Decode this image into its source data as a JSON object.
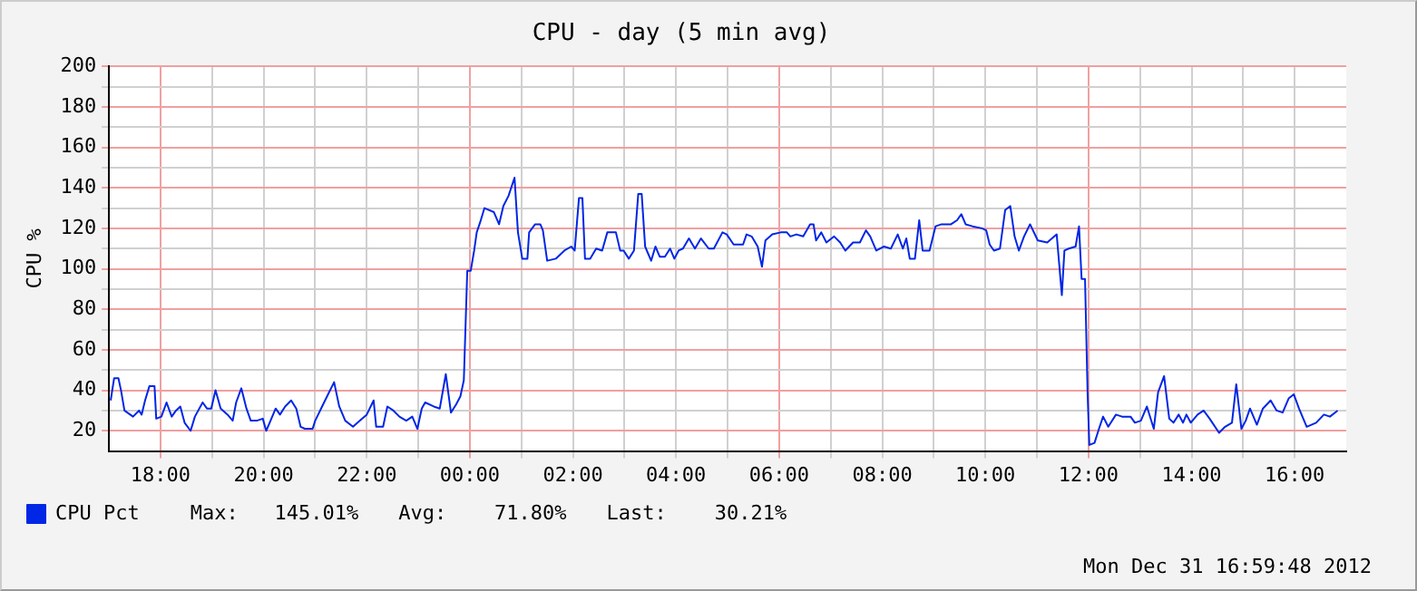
{
  "chart_data": {
    "type": "line",
    "title": "CPU - day (5 min avg)",
    "ylabel": "CPU %",
    "x": [
      "2012-12-30T17:02",
      "2012-12-30T17:06",
      "2012-12-30T17:11",
      "2012-12-30T17:14",
      "2012-12-30T17:18",
      "2012-12-30T17:28",
      "2012-12-30T17:35",
      "2012-12-30T17:38",
      "2012-12-30T17:42",
      "2012-12-30T17:47",
      "2012-12-30T17:53",
      "2012-12-30T17:55",
      "2012-12-30T18:01",
      "2012-12-30T18:07",
      "2012-12-30T18:13",
      "2012-12-30T18:18",
      "2012-12-30T18:23",
      "2012-12-30T18:28",
      "2012-12-30T18:35",
      "2012-12-30T18:40",
      "2012-12-30T18:49",
      "2012-12-30T18:54",
      "2012-12-30T18:59",
      "2012-12-30T19:04",
      "2012-12-30T19:10",
      "2012-12-30T19:18",
      "2012-12-30T19:24",
      "2012-12-30T19:28",
      "2012-12-30T19:34",
      "2012-12-30T19:40",
      "2012-12-30T19:45",
      "2012-12-30T19:52",
      "2012-12-30T19:59",
      "2012-12-30T20:03",
      "2012-12-30T20:08",
      "2012-12-30T20:14",
      "2012-12-30T20:19",
      "2012-12-30T20:25",
      "2012-12-30T20:32",
      "2012-12-30T20:38",
      "2012-12-30T20:43",
      "2012-12-30T20:48",
      "2012-12-30T20:57",
      "2012-12-30T21:00",
      "2012-12-30T21:08",
      "2012-12-30T21:15",
      "2012-12-30T21:22",
      "2012-12-30T21:28",
      "2012-12-30T21:35",
      "2012-12-30T21:44",
      "2012-12-30T21:52",
      "2012-12-30T22:00",
      "2012-12-30T22:08",
      "2012-12-30T22:11",
      "2012-12-30T22:19",
      "2012-12-30T22:24",
      "2012-12-30T22:31",
      "2012-12-30T22:38",
      "2012-12-30T22:46",
      "2012-12-30T22:53",
      "2012-12-30T22:59",
      "2012-12-30T23:04",
      "2012-12-30T23:08",
      "2012-12-30T23:18",
      "2012-12-30T23:25",
      "2012-12-30T23:32",
      "2012-12-30T23:38",
      "2012-12-30T23:44",
      "2012-12-30T23:49",
      "2012-12-30T23:53",
      "2012-12-30T23:57",
      "2012-12-31T00:01",
      "2012-12-31T00:05",
      "2012-12-31T00:08",
      "2012-12-31T00:12",
      "2012-12-31T00:17",
      "2012-12-31T00:28",
      "2012-12-31T00:34",
      "2012-12-31T00:39",
      "2012-12-31T00:45",
      "2012-12-31T00:52",
      "2012-12-31T00:56",
      "2012-12-31T01:01",
      "2012-12-31T01:07",
      "2012-12-31T01:09",
      "2012-12-31T01:16",
      "2012-12-31T01:22",
      "2012-12-31T01:25",
      "2012-12-31T01:30",
      "2012-12-31T01:40",
      "2012-12-31T01:50",
      "2012-12-31T01:58",
      "2012-12-31T02:02",
      "2012-12-31T02:07",
      "2012-12-31T02:11",
      "2012-12-31T02:14",
      "2012-12-31T02:20",
      "2012-12-31T02:27",
      "2012-12-31T02:34",
      "2012-12-31T02:40",
      "2012-12-31T02:50",
      "2012-12-31T02:55",
      "2012-12-31T02:59",
      "2012-12-31T03:05",
      "2012-12-31T03:11",
      "2012-12-31T03:16",
      "2012-12-31T03:20",
      "2012-12-31T03:24",
      "2012-12-31T03:31",
      "2012-12-31T03:36",
      "2012-12-31T03:41",
      "2012-12-31T03:47",
      "2012-12-31T03:53",
      "2012-12-31T03:58",
      "2012-12-31T04:03",
      "2012-12-31T04:08",
      "2012-12-31T04:15",
      "2012-12-31T04:22",
      "2012-12-31T04:29",
      "2012-12-31T04:38",
      "2012-12-31T04:44",
      "2012-12-31T04:54",
      "2012-12-31T04:59",
      "2012-12-31T05:07",
      "2012-12-31T05:18",
      "2012-12-31T05:22",
      "2012-12-31T05:28",
      "2012-12-31T05:35",
      "2012-12-31T05:40",
      "2012-12-31T05:44",
      "2012-12-31T05:52",
      "2012-12-31T06:02",
      "2012-12-31T06:09",
      "2012-12-31T06:13",
      "2012-12-31T06:20",
      "2012-12-31T06:28",
      "2012-12-31T06:36",
      "2012-12-31T06:40",
      "2012-12-31T06:43",
      "2012-12-31T06:49",
      "2012-12-31T06:55",
      "2012-12-31T07:04",
      "2012-12-31T07:11",
      "2012-12-31T07:17",
      "2012-12-31T07:26",
      "2012-12-31T07:34",
      "2012-12-31T07:41",
      "2012-12-31T07:46",
      "2012-12-31T07:53",
      "2012-12-31T08:02",
      "2012-12-31T08:10",
      "2012-12-31T08:18",
      "2012-12-31T08:24",
      "2012-12-31T08:28",
      "2012-12-31T08:32",
      "2012-12-31T08:38",
      "2012-12-31T08:43",
      "2012-12-31T08:47",
      "2012-12-31T08:55",
      "2012-12-31T09:02",
      "2012-12-31T09:09",
      "2012-12-31T09:20",
      "2012-12-31T09:27",
      "2012-12-31T09:32",
      "2012-12-31T09:37",
      "2012-12-31T09:45",
      "2012-12-31T09:56",
      "2012-12-31T10:01",
      "2012-12-31T10:05",
      "2012-12-31T10:10",
      "2012-12-31T10:17",
      "2012-12-31T10:23",
      "2012-12-31T10:29",
      "2012-12-31T10:34",
      "2012-12-31T10:39",
      "2012-12-31T10:45",
      "2012-12-31T10:52",
      "2012-12-31T11:01",
      "2012-12-31T11:12",
      "2012-12-31T11:23",
      "2012-12-31T11:29",
      "2012-12-31T11:32",
      "2012-12-31T11:37",
      "2012-12-31T11:45",
      "2012-12-31T11:49",
      "2012-12-31T11:52",
      "2012-12-31T11:56",
      "2012-12-31T11:59",
      "2012-12-31T12:01",
      "2012-12-31T12:07",
      "2012-12-31T12:13",
      "2012-12-31T12:17",
      "2012-12-31T12:23",
      "2012-12-31T12:32",
      "2012-12-31T12:39",
      "2012-12-31T12:49",
      "2012-12-31T12:54",
      "2012-12-31T13:01",
      "2012-12-31T13:08",
      "2012-12-31T13:16",
      "2012-12-31T13:21",
      "2012-12-31T13:28",
      "2012-12-31T13:34",
      "2012-12-31T13:39",
      "2012-12-31T13:45",
      "2012-12-31T13:50",
      "2012-12-31T13:54",
      "2012-12-31T13:59",
      "2012-12-31T14:07",
      "2012-12-31T14:14",
      "2012-12-31T14:21",
      "2012-12-31T14:32",
      "2012-12-31T14:39",
      "2012-12-31T14:47",
      "2012-12-31T14:52",
      "2012-12-31T14:58",
      "2012-12-31T15:03",
      "2012-12-31T15:08",
      "2012-12-31T15:16",
      "2012-12-31T15:23",
      "2012-12-31T15:32",
      "2012-12-31T15:39",
      "2012-12-31T15:46",
      "2012-12-31T15:53",
      "2012-12-31T15:59",
      "2012-12-31T16:05",
      "2012-12-31T16:14",
      "2012-12-31T16:25",
      "2012-12-31T16:34",
      "2012-12-31T16:41",
      "2012-12-31T16:50"
    ],
    "series": [
      {
        "name": "CPU Pct",
        "color": "#0026e6",
        "values": [
          35,
          46,
          46,
          40,
          30,
          27,
          30,
          28,
          35,
          42,
          42,
          26,
          27,
          34,
          27,
          30,
          32,
          24,
          20,
          27,
          34,
          31,
          31,
          40,
          31,
          28,
          25,
          34,
          41,
          31,
          25,
          25,
          26,
          20,
          25,
          31,
          28,
          32,
          35,
          31,
          22,
          21,
          21,
          25,
          32,
          38,
          44,
          32,
          25,
          22,
          25,
          28,
          35,
          22,
          22,
          32,
          30,
          27,
          25,
          27,
          21,
          31,
          34,
          32,
          31,
          48,
          29,
          33,
          37,
          45,
          99,
          99,
          109,
          118,
          123,
          130,
          128,
          122,
          131,
          136,
          145,
          118,
          105,
          105,
          118,
          122,
          122,
          119,
          104,
          105,
          109,
          111,
          109,
          135,
          135,
          105,
          105,
          110,
          109,
          118,
          118,
          109,
          109,
          105,
          109,
          137,
          137,
          111,
          104,
          111,
          106,
          106,
          110,
          105,
          109,
          110,
          115,
          110,
          115,
          110,
          110,
          118,
          117,
          112,
          112,
          117,
          116,
          111,
          101,
          114,
          117,
          118,
          118,
          116,
          117,
          116,
          122,
          122,
          114,
          118,
          113,
          116,
          113,
          109,
          113,
          113,
          119,
          116,
          109,
          111,
          110,
          117,
          110,
          115,
          105,
          105,
          124,
          109,
          109,
          121,
          122,
          122,
          124,
          127,
          122,
          121,
          120,
          119,
          112,
          109,
          110,
          129,
          131,
          116,
          109,
          116,
          122,
          114,
          113,
          117,
          87,
          109,
          110,
          111,
          121,
          95,
          95,
          38,
          13,
          14,
          22,
          27,
          22,
          28,
          27,
          27,
          24,
          25,
          32,
          21,
          39,
          47,
          26,
          24,
          28,
          24,
          28,
          24,
          28,
          30,
          26,
          19,
          22,
          24,
          43,
          21,
          25,
          31,
          23,
          31,
          35,
          30,
          29,
          36,
          38,
          31,
          22,
          24,
          28,
          27,
          30
        ]
      }
    ],
    "xlim": [
      "2012-12-30T17:00",
      "2012-12-31T17:00"
    ],
    "xticks": [
      {
        "value": "2012-12-30T18:00",
        "label": "18:00"
      },
      {
        "value": "2012-12-30T19:00",
        "label": null
      },
      {
        "value": "2012-12-30T20:00",
        "label": "20:00"
      },
      {
        "value": "2012-12-30T21:00",
        "label": null
      },
      {
        "value": "2012-12-30T22:00",
        "label": "22:00"
      },
      {
        "value": "2012-12-30T23:00",
        "label": null
      },
      {
        "value": "2012-12-31T00:00",
        "label": "00:00"
      },
      {
        "value": "2012-12-31T01:00",
        "label": null
      },
      {
        "value": "2012-12-31T02:00",
        "label": "02:00"
      },
      {
        "value": "2012-12-31T03:00",
        "label": null
      },
      {
        "value": "2012-12-31T04:00",
        "label": "04:00"
      },
      {
        "value": "2012-12-31T05:00",
        "label": null
      },
      {
        "value": "2012-12-31T06:00",
        "label": "06:00"
      },
      {
        "value": "2012-12-31T07:00",
        "label": null
      },
      {
        "value": "2012-12-31T08:00",
        "label": "08:00"
      },
      {
        "value": "2012-12-31T09:00",
        "label": null
      },
      {
        "value": "2012-12-31T10:00",
        "label": "10:00"
      },
      {
        "value": "2012-12-31T11:00",
        "label": null
      },
      {
        "value": "2012-12-31T12:00",
        "label": "12:00"
      },
      {
        "value": "2012-12-31T13:00",
        "label": null
      },
      {
        "value": "2012-12-31T14:00",
        "label": "14:00"
      },
      {
        "value": "2012-12-31T15:00",
        "label": null
      },
      {
        "value": "2012-12-31T16:00",
        "label": "16:00"
      }
    ],
    "ylim": [
      10,
      200
    ],
    "yticks": [
      20,
      {
        "value": 30,
        "label": null
      },
      40,
      {
        "value": 50,
        "label": null
      },
      60,
      {
        "value": 70,
        "label": null
      },
      80,
      {
        "value": 90,
        "label": null
      },
      100,
      {
        "value": 110,
        "label": null
      },
      120,
      {
        "value": 130,
        "label": null
      },
      140,
      {
        "value": 150,
        "label": null
      },
      160,
      {
        "value": 170,
        "label": null
      },
      180,
      {
        "value": 190,
        "label": null
      },
      200
    ],
    "grid": true,
    "legend": "bottom",
    "marker": "none",
    "annotations": [
      "Max:   145.01%",
      "Avg:    71.80%",
      "Last:    30.21%",
      "Mon Dec 31 16:59:48 2012"
    ]
  }
}
